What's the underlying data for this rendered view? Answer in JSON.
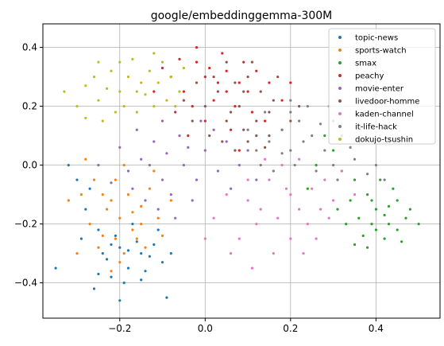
{
  "chart_data": {
    "type": "scatter",
    "title": "google/embeddinggemma-300M",
    "xlabel": "",
    "ylabel": "",
    "xlim": [
      -0.38,
      0.55
    ],
    "ylim": [
      -0.52,
      0.48
    ],
    "xticks": [
      -0.2,
      0.0,
      0.2,
      0.4
    ],
    "xtick_labels": [
      "−0.2",
      "0.0",
      "0.2",
      "0.4"
    ],
    "yticks": [
      -0.4,
      -0.2,
      0.0,
      0.2,
      0.4
    ],
    "ytick_labels": [
      "−0.4",
      "−0.2",
      "0.0",
      "0.2",
      "0.4"
    ],
    "grid": true,
    "legend_position": "top-right",
    "series": [
      {
        "name": "topic-news",
        "color": "#1f77b4",
        "points": [
          [
            -0.23,
            -0.32
          ],
          [
            -0.2,
            -0.28
          ],
          [
            -0.18,
            -0.35
          ],
          [
            -0.15,
            -0.3
          ],
          [
            -0.22,
            -0.38
          ],
          [
            -0.25,
            -0.22
          ],
          [
            -0.28,
            -0.15
          ],
          [
            -0.3,
            -0.05
          ],
          [
            -0.12,
            -0.27
          ],
          [
            -0.17,
            -0.2
          ],
          [
            -0.26,
            -0.42
          ],
          [
            -0.19,
            -0.4
          ],
          [
            -0.14,
            -0.36
          ],
          [
            -0.1,
            -0.33
          ],
          [
            -0.24,
            -0.3
          ],
          [
            -0.32,
            0.0
          ],
          [
            -0.27,
            -0.08
          ],
          [
            -0.16,
            -0.26
          ],
          [
            -0.21,
            -0.24
          ],
          [
            -0.09,
            -0.45
          ],
          [
            -0.2,
            -0.46
          ],
          [
            -0.13,
            -0.31
          ],
          [
            -0.18,
            -0.29
          ],
          [
            -0.29,
            -0.25
          ],
          [
            -0.35,
            -0.35
          ],
          [
            -0.22,
            -0.27
          ],
          [
            -0.11,
            -0.22
          ],
          [
            -0.15,
            -0.39
          ],
          [
            -0.25,
            -0.37
          ],
          [
            -0.08,
            -0.3
          ]
        ]
      },
      {
        "name": "sports-watch",
        "color": "#ff7f0e",
        "points": [
          [
            -0.2,
            -0.18
          ],
          [
            -0.17,
            -0.22
          ],
          [
            -0.22,
            -0.12
          ],
          [
            -0.15,
            -0.14
          ],
          [
            -0.25,
            -0.28
          ],
          [
            -0.19,
            -0.3
          ],
          [
            -0.13,
            -0.08
          ],
          [
            -0.27,
            -0.2
          ],
          [
            -0.21,
            -0.05
          ],
          [
            -0.16,
            -0.25
          ],
          [
            -0.23,
            -0.15
          ],
          [
            -0.18,
            -0.1
          ],
          [
            -0.29,
            -0.1
          ],
          [
            -0.11,
            -0.18
          ],
          [
            -0.24,
            -0.24
          ],
          [
            -0.2,
            -0.33
          ],
          [
            -0.14,
            -0.28
          ],
          [
            -0.3,
            -0.3
          ],
          [
            -0.26,
            -0.05
          ],
          [
            -0.08,
            -0.12
          ],
          [
            -0.19,
            0.0
          ],
          [
            -0.28,
            0.02
          ],
          [
            -0.12,
            -0.02
          ],
          [
            -0.22,
            -0.36
          ],
          [
            -0.32,
            -0.12
          ],
          [
            -0.1,
            -0.24
          ],
          [
            -0.17,
            -0.16
          ],
          [
            -0.24,
            -0.1
          ],
          [
            -0.15,
            -0.2
          ],
          [
            -0.21,
            -0.25
          ]
        ]
      },
      {
        "name": "smax",
        "color": "#2ca02c",
        "points": [
          [
            0.4,
            -0.15
          ],
          [
            0.43,
            -0.2
          ],
          [
            0.38,
            -0.1
          ],
          [
            0.45,
            -0.12
          ],
          [
            0.42,
            -0.25
          ],
          [
            0.35,
            -0.05
          ],
          [
            0.47,
            -0.18
          ],
          [
            0.4,
            -0.22
          ],
          [
            0.36,
            -0.18
          ],
          [
            0.44,
            -0.08
          ],
          [
            0.32,
            -0.02
          ],
          [
            0.38,
            -0.28
          ],
          [
            0.46,
            -0.26
          ],
          [
            0.3,
            0.05
          ],
          [
            0.41,
            -0.05
          ],
          [
            0.48,
            -0.15
          ],
          [
            0.34,
            -0.12
          ],
          [
            0.39,
            -0.2
          ],
          [
            0.43,
            -0.14
          ],
          [
            0.28,
            0.1
          ],
          [
            0.37,
            -0.24
          ],
          [
            0.45,
            -0.22
          ],
          [
            0.33,
            -0.2
          ],
          [
            0.5,
            -0.2
          ],
          [
            0.26,
            0.0
          ],
          [
            0.31,
            -0.15
          ],
          [
            0.42,
            -0.17
          ],
          [
            0.35,
            -0.27
          ],
          [
            0.24,
            -0.08
          ],
          [
            0.39,
            -0.12
          ]
        ]
      },
      {
        "name": "peachy",
        "color": "#d62728",
        "points": [
          [
            0.0,
            0.3
          ],
          [
            -0.05,
            0.25
          ],
          [
            0.05,
            0.32
          ],
          [
            -0.02,
            0.35
          ],
          [
            0.08,
            0.28
          ],
          [
            0.02,
            0.22
          ],
          [
            -0.08,
            0.3
          ],
          [
            0.1,
            0.25
          ],
          [
            0.04,
            0.38
          ],
          [
            -0.03,
            0.2
          ],
          [
            0.12,
            0.32
          ],
          [
            0.07,
            0.2
          ],
          [
            -0.1,
            0.33
          ],
          [
            0.0,
            0.15
          ],
          [
            0.15,
            0.28
          ],
          [
            -0.06,
            0.36
          ],
          [
            0.09,
            0.35
          ],
          [
            0.03,
            0.28
          ],
          [
            -0.12,
            0.25
          ],
          [
            0.06,
            0.12
          ],
          [
            0.18,
            0.22
          ],
          [
            -0.02,
            0.4
          ],
          [
            0.11,
            0.18
          ],
          [
            -0.07,
            0.18
          ],
          [
            0.01,
            0.33
          ],
          [
            0.14,
            0.15
          ],
          [
            -0.04,
            0.1
          ],
          [
            0.08,
            0.05
          ],
          [
            0.2,
            0.28
          ],
          [
            0.05,
            0.25
          ]
        ]
      },
      {
        "name": "movie-enter",
        "color": "#9467bd",
        "points": [
          [
            -0.1,
            -0.05
          ],
          [
            -0.05,
            0.0
          ],
          [
            -0.15,
            0.02
          ],
          [
            -0.08,
            -0.1
          ],
          [
            -0.02,
            -0.05
          ],
          [
            -0.12,
            0.08
          ],
          [
            0.0,
            0.05
          ],
          [
            -0.18,
            -0.02
          ],
          [
            -0.06,
            0.1
          ],
          [
            0.03,
            -0.02
          ],
          [
            -0.14,
            -0.12
          ],
          [
            -0.2,
            0.06
          ],
          [
            0.05,
            0.08
          ],
          [
            -0.09,
            0.04
          ],
          [
            -0.03,
            -0.12
          ],
          [
            -0.16,
            0.12
          ],
          [
            0.08,
            0.0
          ],
          [
            -0.11,
            -0.15
          ],
          [
            -0.22,
            -0.06
          ],
          [
            0.02,
            0.12
          ],
          [
            -0.07,
            -0.18
          ],
          [
            0.1,
            0.05
          ],
          [
            -0.13,
            0.0
          ],
          [
            -0.04,
            0.06
          ],
          [
            -0.17,
            -0.08
          ],
          [
            0.06,
            -0.08
          ],
          [
            -0.01,
            0.15
          ],
          [
            -0.25,
            0.0
          ],
          [
            0.12,
            -0.05
          ],
          [
            -0.1,
            0.15
          ]
        ]
      },
      {
        "name": "livedoor-homme",
        "color": "#8c564b",
        "points": [
          [
            0.05,
            0.15
          ],
          [
            0.08,
            0.2
          ],
          [
            0.12,
            0.1
          ],
          [
            0.03,
            0.25
          ],
          [
            0.1,
            0.3
          ],
          [
            0.15,
            0.18
          ],
          [
            0.0,
            0.2
          ],
          [
            0.07,
            0.05
          ],
          [
            0.13,
            0.25
          ],
          [
            -0.03,
            0.15
          ],
          [
            0.18,
            0.12
          ],
          [
            0.02,
            0.3
          ],
          [
            0.09,
            0.12
          ],
          [
            0.16,
            0.22
          ],
          [
            0.04,
            0.08
          ],
          [
            0.11,
            0.35
          ],
          [
            -0.05,
            0.22
          ],
          [
            0.2,
            0.15
          ],
          [
            0.06,
            0.18
          ],
          [
            0.14,
            0.06
          ],
          [
            0.01,
            0.1
          ],
          [
            0.17,
            0.3
          ],
          [
            0.09,
            0.25
          ],
          [
            -0.02,
            0.28
          ],
          [
            0.12,
            0.15
          ],
          [
            0.22,
            0.2
          ],
          [
            0.05,
            0.35
          ],
          [
            0.15,
            0.1
          ],
          [
            0.07,
            0.28
          ],
          [
            0.1,
            0.08
          ]
        ]
      },
      {
        "name": "kaden-channel",
        "color": "#e377c2",
        "points": [
          [
            0.15,
            -0.05
          ],
          [
            0.2,
            -0.1
          ],
          [
            0.1,
            -0.12
          ],
          [
            0.25,
            -0.08
          ],
          [
            0.18,
            0.0
          ],
          [
            0.12,
            -0.2
          ],
          [
            0.22,
            -0.15
          ],
          [
            0.28,
            -0.05
          ],
          [
            0.05,
            -0.1
          ],
          [
            0.17,
            -0.18
          ],
          [
            0.3,
            -0.12
          ],
          [
            0.08,
            -0.25
          ],
          [
            0.24,
            -0.2
          ],
          [
            0.14,
            0.02
          ],
          [
            0.32,
            -0.02
          ],
          [
            0.2,
            -0.25
          ],
          [
            0.1,
            -0.05
          ],
          [
            0.27,
            -0.15
          ],
          [
            0.02,
            -0.18
          ],
          [
            0.35,
            -0.1
          ],
          [
            0.16,
            -0.3
          ],
          [
            0.22,
            0.02
          ],
          [
            0.06,
            -0.3
          ],
          [
            0.26,
            -0.25
          ],
          [
            0.13,
            -0.15
          ],
          [
            0.19,
            -0.08
          ],
          [
            0.29,
            -0.18
          ],
          [
            0.0,
            -0.25
          ],
          [
            0.23,
            -0.3
          ],
          [
            0.11,
            -0.35
          ]
        ]
      },
      {
        "name": "it-life-hack",
        "color": "#7f7f7f",
        "points": [
          [
            0.2,
            0.05
          ],
          [
            0.25,
            0.1
          ],
          [
            0.15,
            0.08
          ],
          [
            0.3,
            0.0
          ],
          [
            0.22,
            0.15
          ],
          [
            0.28,
            0.05
          ],
          [
            0.18,
            0.12
          ],
          [
            0.35,
            0.02
          ],
          [
            0.12,
            0.05
          ],
          [
            0.26,
            -0.02
          ],
          [
            0.32,
            0.1
          ],
          [
            0.2,
            0.18
          ],
          [
            0.38,
            -0.03
          ],
          [
            0.16,
            -0.02
          ],
          [
            0.24,
            0.2
          ],
          [
            0.3,
            0.15
          ],
          [
            0.1,
            0.12
          ],
          [
            0.34,
            0.06
          ],
          [
            0.21,
            0.0
          ],
          [
            0.27,
            0.14
          ],
          [
            0.14,
            0.18
          ],
          [
            0.4,
            0.0
          ],
          [
            0.23,
            0.08
          ],
          [
            0.31,
            -0.05
          ],
          [
            0.18,
            0.04
          ],
          [
            0.36,
            0.08
          ],
          [
            0.2,
            0.22
          ],
          [
            0.42,
            -0.05
          ],
          [
            0.29,
            0.2
          ],
          [
            0.13,
            0.0
          ]
        ]
      },
      {
        "name": "dokujo-tsushin",
        "color": "#bcbd22",
        "points": [
          [
            -0.2,
            0.25
          ],
          [
            -0.15,
            0.28
          ],
          [
            -0.25,
            0.22
          ],
          [
            -0.18,
            0.3
          ],
          [
            -0.12,
            0.2
          ],
          [
            -0.22,
            0.32
          ],
          [
            -0.1,
            0.35
          ],
          [
            -0.28,
            0.27
          ],
          [
            -0.16,
            0.18
          ],
          [
            -0.08,
            0.3
          ],
          [
            -0.24,
            0.15
          ],
          [
            -0.2,
            0.35
          ],
          [
            -0.14,
            0.24
          ],
          [
            -0.3,
            0.2
          ],
          [
            -0.06,
            0.25
          ],
          [
            -0.26,
            0.3
          ],
          [
            -0.11,
            0.28
          ],
          [
            -0.19,
            0.2
          ],
          [
            -0.23,
            0.26
          ],
          [
            -0.17,
            0.36
          ],
          [
            -0.09,
            0.22
          ],
          [
            -0.28,
            0.16
          ],
          [
            -0.13,
            0.32
          ],
          [
            -0.21,
            0.18
          ],
          [
            -0.05,
            0.33
          ],
          [
            -0.33,
            0.25
          ],
          [
            -0.16,
            0.25
          ],
          [
            -0.12,
            0.38
          ],
          [
            -0.25,
            0.35
          ],
          [
            -0.07,
            0.2
          ]
        ]
      }
    ]
  }
}
